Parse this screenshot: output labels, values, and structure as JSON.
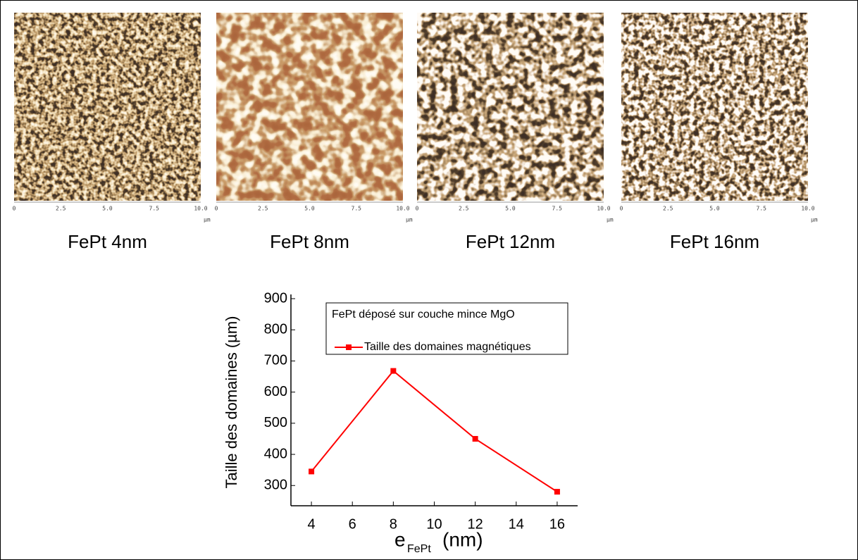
{
  "images": [
    {
      "caption": "FePt 4nm",
      "ticks": [
        "0",
        "2.5",
        "5.0",
        "7.5",
        "10.0"
      ],
      "unit": "µm"
    },
    {
      "caption": "FePt 8nm",
      "ticks": [
        "0",
        "2.5",
        "5.0",
        "7.5",
        "10.0"
      ],
      "unit": "µm"
    },
    {
      "caption": "FePt 12nm",
      "ticks": [
        "0",
        "2.5",
        "5.0",
        "7.5",
        "10.0"
      ],
      "unit": "µm"
    },
    {
      "caption": "FePt 16nm",
      "ticks": [
        "0",
        "2.5",
        "5.0",
        "7.5",
        "10.0"
      ],
      "unit": "µm"
    }
  ],
  "chart_data": {
    "type": "line",
    "annotation": "FePt déposé sur couche mince MgO",
    "xlabel": "e",
    "xlabel_subscript": "FePt",
    "xlabel_unit": "(nm)",
    "ylabel": "Taille des domaines (µm)",
    "x": [
      4,
      8,
      12,
      16
    ],
    "series": [
      {
        "name": "Taille des domaines magnétiques",
        "color": "#ff0000",
        "values": [
          345,
          668,
          450,
          280
        ]
      }
    ],
    "xlim": [
      3,
      17
    ],
    "xticks": [
      4,
      6,
      8,
      10,
      12,
      14,
      16
    ],
    "ylim": [
      235,
      900
    ],
    "yticks": [
      300,
      400,
      500,
      600,
      700,
      800,
      900
    ],
    "grid": false,
    "legend": "upper right"
  }
}
